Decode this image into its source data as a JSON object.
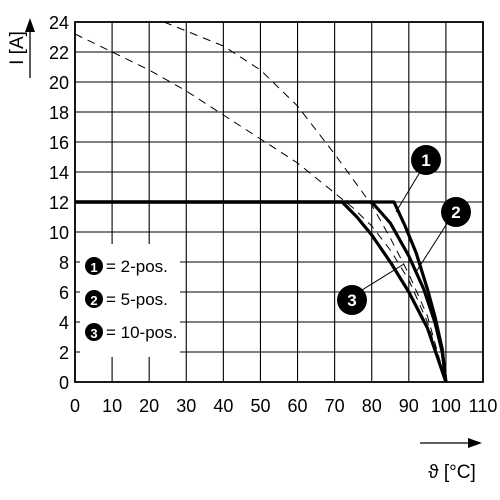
{
  "chart_data": {
    "type": "line",
    "xlabel": "ϑ [°C]",
    "ylabel": "I [A]",
    "xlim": [
      0,
      110
    ],
    "ylim": [
      0,
      24
    ],
    "x_ticks": [
      "0",
      "10",
      "20",
      "30",
      "40",
      "50",
      "60",
      "70",
      "80",
      "90",
      "100",
      "110"
    ],
    "y_ticks": [
      "0",
      "2",
      "4",
      "6",
      "8",
      "10",
      "12",
      "14",
      "16",
      "18",
      "20",
      "22",
      "24"
    ],
    "grid": true,
    "legend_position": "middle-left",
    "series": [
      {
        "name": "2-pos.",
        "marker": "1",
        "style": "solid",
        "points": [
          [
            0,
            12
          ],
          [
            86,
            12
          ],
          [
            89,
            10.4
          ],
          [
            92,
            8.6
          ],
          [
            95,
            6.2
          ],
          [
            97,
            4.4
          ],
          [
            99,
            2.2
          ],
          [
            100,
            0
          ]
        ],
        "dashed_extension": [
          [
            24,
            24
          ],
          [
            40,
            22.4
          ],
          [
            50,
            20.8
          ],
          [
            60,
            18.4
          ],
          [
            70,
            15.2
          ],
          [
            80,
            11.8
          ],
          [
            85,
            9.6
          ],
          [
            90,
            7.2
          ],
          [
            95,
            4.4
          ],
          [
            100,
            0
          ]
        ]
      },
      {
        "name": "5-pos.",
        "marker": "2",
        "style": "solid",
        "points": [
          [
            0,
            12
          ],
          [
            80,
            12
          ],
          [
            85,
            10.6
          ],
          [
            90,
            8.4
          ],
          [
            94,
            6.2
          ],
          [
            97,
            4
          ],
          [
            99,
            2
          ],
          [
            100,
            0
          ]
        ]
      },
      {
        "name": "10-pos.",
        "marker": "3",
        "style": "solid",
        "points": [
          [
            0,
            12
          ],
          [
            72,
            12
          ],
          [
            76,
            11
          ],
          [
            80,
            9.8
          ],
          [
            85,
            8
          ],
          [
            90,
            6
          ],
          [
            95,
            3.6
          ],
          [
            100,
            0
          ]
        ],
        "dashed_extension": [
          [
            0,
            23.2
          ],
          [
            10,
            22
          ],
          [
            20,
            20.8
          ],
          [
            30,
            19.4
          ],
          [
            40,
            17.8
          ],
          [
            50,
            16.2
          ],
          [
            60,
            14.6
          ],
          [
            70,
            12.6
          ],
          [
            75,
            11.6
          ],
          [
            80,
            10.4
          ],
          [
            85,
            8.8
          ],
          [
            90,
            6.8
          ],
          [
            95,
            4
          ],
          [
            100,
            0
          ]
        ]
      }
    ],
    "legend": [
      {
        "marker": "1",
        "label": "= 2-pos."
      },
      {
        "marker": "2",
        "label": "= 5-pos."
      },
      {
        "marker": "3",
        "label": "= 10-pos."
      }
    ]
  }
}
